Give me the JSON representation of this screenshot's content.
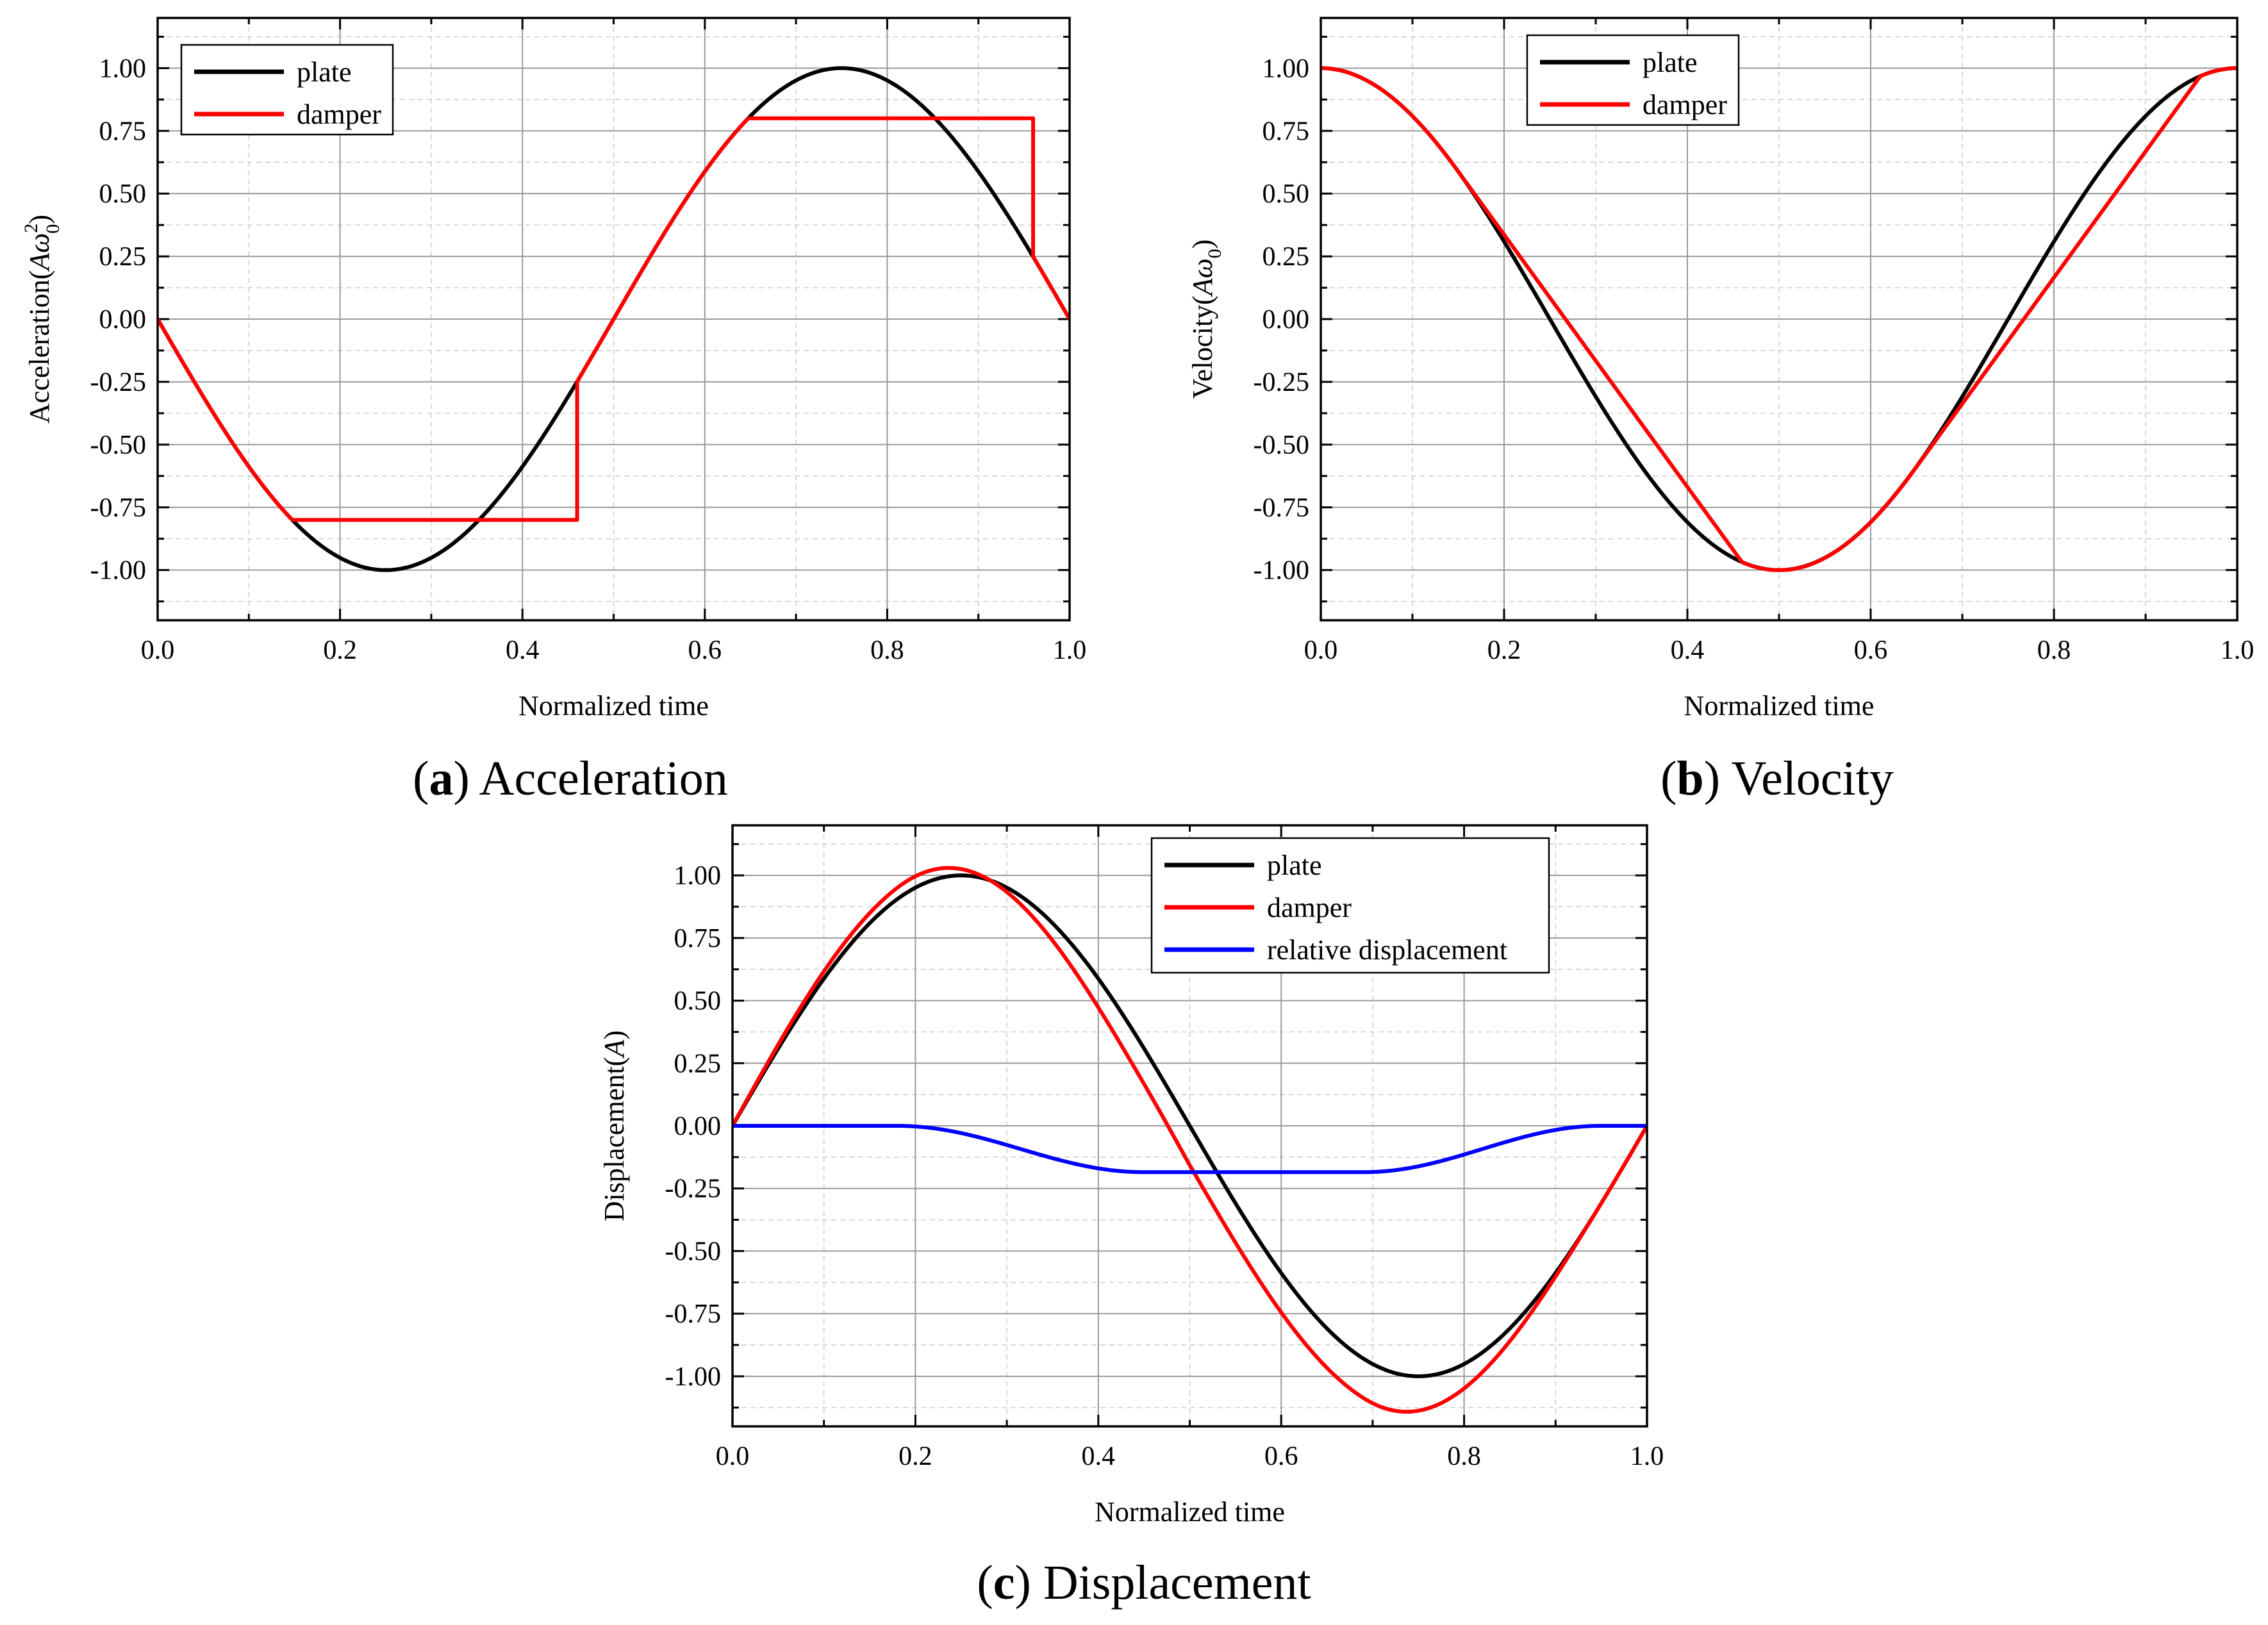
{
  "chart_data": [
    {
      "id": "a",
      "type": "line",
      "caption_letter": "a",
      "caption_title": "Acceleration",
      "xlabel": "Normalized time",
      "ylabel": "Acceleration(Aω₀²)",
      "ylabel_parts": {
        "base": "Acceleration(",
        "var": "Aω",
        "sub": "0",
        "sup": "2",
        "close": ")"
      },
      "xlim": [
        0,
        1
      ],
      "ylim": [
        -1.2,
        1.2
      ],
      "xticks": [
        "0.0",
        "0.2",
        "0.4",
        "0.6",
        "0.8",
        "1.0"
      ],
      "yticks": [
        "-1.00",
        "-0.75",
        "-0.50",
        "-0.25",
        "0.00",
        "0.25",
        "0.50",
        "0.75",
        "1.00"
      ],
      "legend_position": "top-left",
      "series": [
        {
          "name": "plate",
          "color": "#000000",
          "kind": "plate_acceleration"
        },
        {
          "name": "damper",
          "color": "#ff0000",
          "kind": "damper_acceleration",
          "clip_level": 0.8,
          "jump_times": [
            0.46,
            0.96
          ]
        }
      ]
    },
    {
      "id": "b",
      "type": "line",
      "caption_letter": "b",
      "caption_title": "Velocity",
      "xlabel": "Normalized time",
      "ylabel": "Velocity(Aω₀)",
      "ylabel_parts": {
        "base": "Velocity(",
        "var": "Aω",
        "sub": "0",
        "sup": "",
        "close": ")"
      },
      "xlim": [
        0,
        1
      ],
      "ylim": [
        -1.2,
        1.2
      ],
      "xticks": [
        "0.0",
        "0.2",
        "0.4",
        "0.6",
        "0.8",
        "1.0"
      ],
      "yticks": [
        "-1.00",
        "-0.75",
        "-0.50",
        "-0.25",
        "0.00",
        "0.25",
        "0.50",
        "0.75",
        "1.00"
      ],
      "legend_position": "top-center",
      "series": [
        {
          "name": "plate",
          "color": "#000000",
          "kind": "plate_velocity"
        },
        {
          "name": "damper",
          "color": "#ff0000",
          "kind": "damper_velocity"
        }
      ]
    },
    {
      "id": "c",
      "type": "line",
      "caption_letter": "c",
      "caption_title": "Displacement",
      "xlabel": "Normalized time",
      "ylabel": "Displacement(A)",
      "ylabel_parts": {
        "base": "Displacement(",
        "var": "A",
        "sub": "",
        "sup": "",
        "close": ")"
      },
      "xlim": [
        0,
        1
      ],
      "ylim": [
        -1.2,
        1.2
      ],
      "xticks": [
        "0.0",
        "0.2",
        "0.4",
        "0.6",
        "0.8",
        "1.0"
      ],
      "yticks": [
        "-1.00",
        "-0.75",
        "-0.50",
        "-0.25",
        "0.00",
        "0.25",
        "0.50",
        "0.75",
        "1.00"
      ],
      "legend_position": "top-right",
      "series": [
        {
          "name": "plate",
          "color": "#000000",
          "kind": "plate_displacement"
        },
        {
          "name": "damper",
          "color": "#ff0000",
          "kind": "damper_displacement"
        },
        {
          "name": "relative displacement",
          "color": "#0000ff",
          "kind": "relative_displacement"
        }
      ]
    }
  ]
}
